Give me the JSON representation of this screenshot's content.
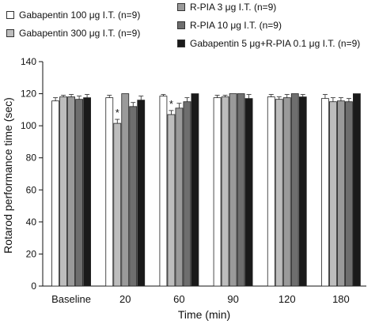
{
  "chart_data": {
    "type": "bar",
    "title": "",
    "xlabel": "Time (min)",
    "ylabel": "Rotarod performance time (sec)",
    "ylim": [
      0,
      140
    ],
    "yticks": [
      0,
      20,
      40,
      60,
      80,
      100,
      120,
      140
    ],
    "categories": [
      "Baseline",
      "20",
      "60",
      "90",
      "120",
      "180"
    ],
    "legend_placement": "top",
    "series": [
      {
        "name": "Gabapentin 100 μg I.T. (n=9)",
        "color": "#ffffff",
        "values": [
          115.5,
          117.5,
          118.5,
          117.5,
          118,
          117
        ],
        "errors": [
          2,
          1.5,
          1,
          1.5,
          1.5,
          2.5
        ]
      },
      {
        "name": "Gabapentin 300 μg I.T. (n=9)",
        "color": "#bdbdbd",
        "values": [
          118,
          101.5,
          107,
          118,
          116.5,
          115
        ],
        "errors": [
          1,
          2.5,
          2.5,
          1,
          1.5,
          2.5
        ]
      },
      {
        "name": "R-PIA 3 μg I.T. (n=9)",
        "color": "#9a9a9a",
        "values": [
          118,
          120,
          111,
          120,
          117.5,
          115.5
        ],
        "errors": [
          1.5,
          0,
          3,
          0,
          2,
          2
        ]
      },
      {
        "name": "R-PIA 10 μg I.T. (n=9)",
        "color": "#6e6e6e",
        "values": [
          116.5,
          112,
          115,
          120,
          120,
          115
        ],
        "errors": [
          2,
          2.5,
          2.5,
          0,
          0,
          2
        ]
      },
      {
        "name": "Gabapentin 5 μg+R-PIA 0.1 μg I.T. (n=9)",
        "color": "#1a1a1a",
        "values": [
          117.5,
          116,
          120,
          117,
          118,
          120
        ],
        "errors": [
          2,
          2.5,
          0,
          2.5,
          1.5,
          0
        ]
      }
    ],
    "annotations": [
      {
        "text": "*",
        "category": "20",
        "series_index": 1
      },
      {
        "text": "*",
        "category": "60",
        "series_index": 1
      }
    ]
  }
}
